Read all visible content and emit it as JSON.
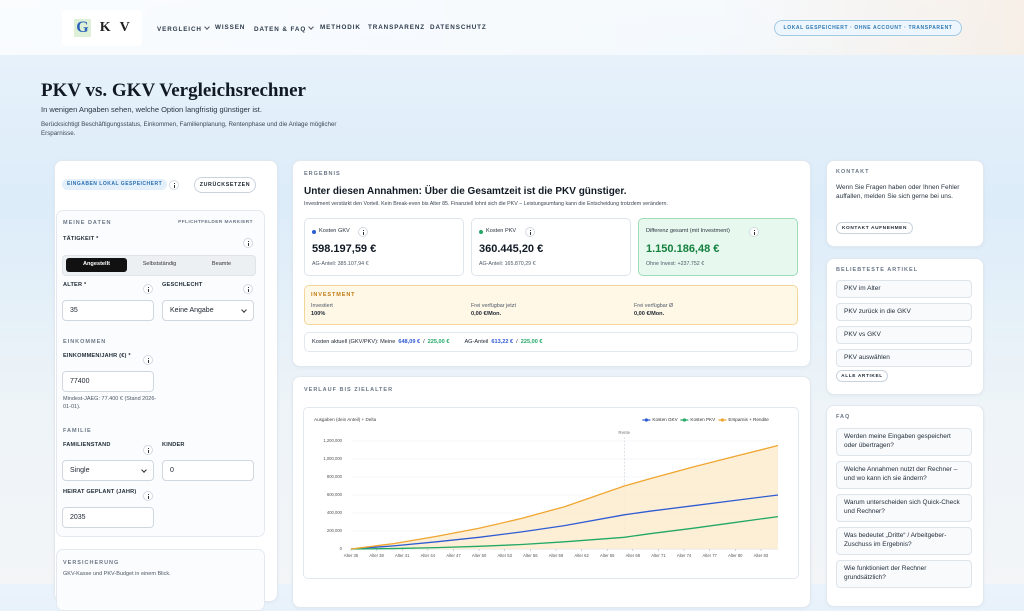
{
  "header": {
    "logo": [
      "G",
      "K",
      "V"
    ],
    "nav": [
      "VERGLEICH",
      "WISSEN",
      "DATEN & FAQ",
      "METHODIK",
      "TRANSPARENZ",
      "DATENSCHUTZ"
    ],
    "badge": "LOKAL GESPEICHERT · OHNE ACCOUNT · TRANSPARENT"
  },
  "hero": {
    "title": "PKV vs. GKV Vergleichsrechner",
    "subtitle": "In wenigen Angaben sehen, welche Option langfristig günstiger ist.",
    "note": "Berücksichtigt Beschäftigungsstatus, Einkommen, Familienplanung, Rentenphase und die Anlage möglicher Ersparnisse."
  },
  "inputs": {
    "badge": "EINGABEN LOKAL GESPEICHERT",
    "reset": "ZURÜCKSETZEN",
    "section": "MEINE DATEN",
    "required": "PFLICHTFELDER MARKIERT",
    "activity_label": "TÄTIGKEIT *",
    "activity_options": [
      "Angestellt",
      "Selbstständig",
      "Beamte"
    ],
    "age_label": "ALTER *",
    "age": 35,
    "gender_label": "GESCHLECHT",
    "gender": "Keine Angabe",
    "income_section": "EINKOMMEN",
    "income_label": "EINKOMMEN/JAHR (€) *",
    "income": 77400,
    "income_hint": "Mindest-JAEG: 77.400 € (Stand 2026-01-01).",
    "family_section": "FAMILIE",
    "status_label": "FAMILIENSTAND",
    "status": "Single",
    "children_label": "KINDER",
    "children": 0,
    "marriage_label": "HEIRAT GEPLANT (JAHR)",
    "marriage": 2035,
    "insurance_section": "VERSICHERUNG",
    "insurance_text": "GKV-Kasse und PKV-Budget in einem Blick."
  },
  "result": {
    "section": "ERGEBNIS",
    "headline": "Unter diesen Annahmen: Über die Gesamtzeit ist die PKV günstiger.",
    "subline": "Investment verstärkt den Vorteil. Kein Break-even bis Alter 85. Finanziell lohnt sich die PKV – Leistungsumfang kann die Entscheidung trotzdem verändern.",
    "cards": [
      {
        "label": "Kosten GKV",
        "value": "598.197,59 €",
        "sub": "AG-Anteil: 385.107,94 €"
      },
      {
        "label": "Kosten PKV",
        "value": "360.445,20 €",
        "sub": "AG-Anteil: 165.870,29 €"
      },
      {
        "label": "Differenz gesamt (mit Investment)",
        "value": "1.150.186,48 €",
        "sub": "Ohne Invest: +237.752 €"
      }
    ],
    "investment": {
      "title": "INVESTMENT",
      "items": [
        {
          "label": "Investiert",
          "value": "100%"
        },
        {
          "label": "Frei verfügbar jetzt",
          "value": "0,00 €/Mon."
        },
        {
          "label": "Frei verfügbar Ø",
          "value": "0,00 €/Mon."
        }
      ]
    },
    "cost_line": {
      "label": "Kosten aktuell (GKV/PKV): Meine",
      "gkv": "648,09 €",
      "sep": "/",
      "pkv": "225,00 €",
      "ag_label": "AG-Anteil",
      "ag_gkv": "613,22 €",
      "ag_pkv": "225,00 €"
    }
  },
  "chart_data": {
    "type": "line",
    "title": "VERLAUF BIS ZIELALTER",
    "y_label": "Ausgaben (dein Anteil) + Delta",
    "x": [
      35,
      40,
      45,
      50,
      55,
      60,
      67,
      70,
      75,
      80,
      85
    ],
    "series": [
      {
        "name": "Kosten GKV",
        "color": "#2f5bd3",
        "values": [
          0,
          35000,
          80000,
          130000,
          190000,
          260000,
          380000,
          420000,
          480000,
          540000,
          600000
        ]
      },
      {
        "name": "Kosten PKV",
        "color": "#22a865",
        "values": [
          0,
          5000,
          15000,
          30000,
          50000,
          80000,
          130000,
          170000,
          230000,
          295000,
          360000
        ]
      },
      {
        "name": "Ersparnis + Rendite",
        "color": "#f0a530",
        "fill": "#fdeccf",
        "values": [
          0,
          60000,
          140000,
          230000,
          340000,
          470000,
          700000,
          780000,
          910000,
          1030000,
          1150000
        ]
      }
    ],
    "xlim": [
      35,
      85
    ],
    "xticks": [
      {
        "value": 35,
        "label": "Alter 35"
      },
      {
        "value": 38,
        "label": "Alter 38"
      },
      {
        "value": 41,
        "label": "Alter 41"
      },
      {
        "value": 44,
        "label": "Alter 44"
      },
      {
        "value": 47,
        "label": "Alter 47"
      },
      {
        "value": 50,
        "label": "Alter 50"
      },
      {
        "value": 53,
        "label": "Alter 53"
      },
      {
        "value": 56,
        "label": "Alter 56"
      },
      {
        "value": 59,
        "label": "Alter 59"
      },
      {
        "value": 62,
        "label": "Alter 62"
      },
      {
        "value": 65,
        "label": "Alter 65"
      },
      {
        "value": 68,
        "label": "Alter 68"
      },
      {
        "value": 71,
        "label": "Alter 71"
      },
      {
        "value": 74,
        "label": "Alter 74"
      },
      {
        "value": 77,
        "label": "Alter 77"
      },
      {
        "value": 80,
        "label": "Alter 80"
      },
      {
        "value": 83,
        "label": "Alter 83"
      }
    ],
    "ylim": [
      0,
      1200000
    ],
    "yticks": [
      0,
      {
        "value": 200000,
        "label": "200,000"
      },
      {
        "value": 400000,
        "label": "400,000"
      },
      {
        "value": 600000,
        "label": "600,000"
      },
      {
        "value": 800000,
        "label": "800,000"
      },
      {
        "value": 1000000,
        "label": "1,000,000"
      },
      {
        "value": 1200000,
        "label": "1,200,000"
      }
    ],
    "grid": true,
    "legend": "top-right",
    "annotation": {
      "x": 67,
      "label": "Rente"
    }
  },
  "sidebar": {
    "contact_title": "KONTAKT",
    "contact_text": "Wenn Sie Fragen haben oder Ihnen Fehler auffallen, melden Sie sich gerne bei uns.",
    "contact_button": "KONTAKT AUFNEHMEN",
    "articles_title": "BELIEBTESTE ARTIKEL",
    "articles": [
      "PKV im Alter",
      "PKV zurück in die GKV",
      "PKV vs GKV",
      "PKV auswählen"
    ],
    "articles_button": "ALLE ARTIKEL",
    "faq_title": "FAQ",
    "faq": [
      "Werden meine Eingaben gespeichert oder übertragen?",
      "Welche Annahmen nutzt der Rechner – und wo kann ich sie ändern?",
      "Warum unterscheiden sich Quick-Check und Rechner?",
      "Was bedeutet „Dritte“ / Arbeitgeber-Zuschuss im Ergebnis?",
      "Wie funktioniert der Rechner grundsätzlich?"
    ]
  }
}
